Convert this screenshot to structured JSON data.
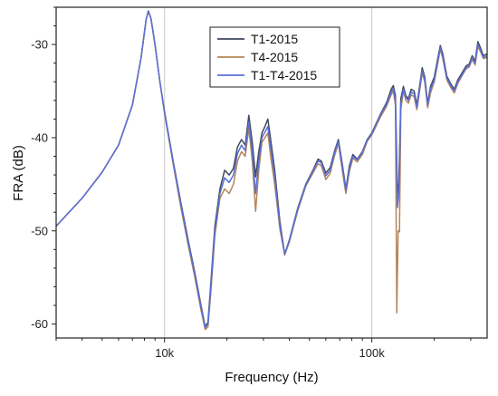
{
  "chart_data": {
    "type": "line",
    "xlabel": "Frequency (Hz)",
    "ylabel": "FRA (dB)",
    "xscale": "log",
    "xlim": [
      3000,
      360000
    ],
    "ylim": [
      -61.5,
      -26
    ],
    "x_ticks": [
      {
        "value": 10000,
        "label": "10k"
      },
      {
        "value": 100000,
        "label": "100k"
      }
    ],
    "y_ticks": [
      {
        "value": -30,
        "label": "-30"
      },
      {
        "value": -40,
        "label": "-40"
      },
      {
        "value": -50,
        "label": "-50"
      },
      {
        "value": -60,
        "label": "-60"
      }
    ],
    "vertical_gridlines": [
      10000,
      100000
    ],
    "legend_position": "top-center",
    "series": [
      {
        "name": "T1-2015",
        "color": "#3c4a5e",
        "points": [
          [
            3000,
            -49.5
          ],
          [
            4000,
            -46.5
          ],
          [
            5000,
            -43.7
          ],
          [
            6000,
            -40.8
          ],
          [
            7000,
            -36.5
          ],
          [
            7700,
            -31.5
          ],
          [
            8150,
            -27.3
          ],
          [
            8350,
            -26.4
          ],
          [
            8600,
            -27.2
          ],
          [
            9000,
            -30.0
          ],
          [
            9500,
            -34.0
          ],
          [
            10000,
            -37.2
          ],
          [
            11000,
            -42.5
          ],
          [
            12000,
            -47.0
          ],
          [
            13000,
            -51.0
          ],
          [
            14000,
            -54.5
          ],
          [
            15000,
            -58.0
          ],
          [
            15700,
            -60.3
          ],
          [
            16200,
            -59.8
          ],
          [
            16800,
            -55.0
          ],
          [
            17500,
            -49.5
          ],
          [
            18500,
            -45.5
          ],
          [
            19500,
            -43.5
          ],
          [
            20500,
            -44.0
          ],
          [
            21500,
            -43.3
          ],
          [
            22500,
            -41.0
          ],
          [
            23500,
            -40.2
          ],
          [
            24500,
            -40.8
          ],
          [
            25500,
            -37.6
          ],
          [
            26500,
            -40.5
          ],
          [
            27500,
            -44.2
          ],
          [
            28500,
            -41.5
          ],
          [
            29500,
            -39.5
          ],
          [
            30500,
            -38.8
          ],
          [
            31500,
            -38.0
          ],
          [
            32500,
            -40.2
          ],
          [
            34000,
            -43.5
          ],
          [
            36000,
            -49.0
          ],
          [
            38000,
            -52.5
          ],
          [
            40000,
            -51.0
          ],
          [
            44000,
            -47.5
          ],
          [
            48000,
            -45.0
          ],
          [
            52000,
            -43.5
          ],
          [
            55000,
            -42.3
          ],
          [
            57000,
            -42.5
          ],
          [
            60000,
            -43.8
          ],
          [
            63000,
            -43.2
          ],
          [
            66000,
            -41.5
          ],
          [
            69000,
            -40.2
          ],
          [
            72000,
            -42.8
          ],
          [
            75000,
            -45.5
          ],
          [
            78000,
            -43.0
          ],
          [
            81000,
            -41.8
          ],
          [
            85000,
            -42.3
          ],
          [
            90000,
            -41.5
          ],
          [
            95000,
            -40.2
          ],
          [
            100000,
            -39.5
          ],
          [
            110000,
            -37.5
          ],
          [
            118000,
            -36.2
          ],
          [
            124000,
            -34.8
          ],
          [
            127000,
            -34.4
          ],
          [
            130000,
            -35.5
          ],
          [
            133000,
            -46.0
          ],
          [
            135000,
            -44.8
          ],
          [
            138000,
            -35.8
          ],
          [
            142000,
            -34.5
          ],
          [
            146000,
            -35.5
          ],
          [
            150000,
            -35.8
          ],
          [
            155000,
            -34.8
          ],
          [
            160000,
            -35.0
          ],
          [
            165000,
            -36.5
          ],
          [
            170000,
            -34.5
          ],
          [
            175000,
            -32.5
          ],
          [
            180000,
            -33.5
          ],
          [
            186000,
            -36.3
          ],
          [
            192000,
            -34.5
          ],
          [
            200000,
            -33.5
          ],
          [
            208000,
            -31.5
          ],
          [
            214000,
            -30.1
          ],
          [
            220000,
            -31.0
          ],
          [
            230000,
            -33.4
          ],
          [
            240000,
            -34.2
          ],
          [
            250000,
            -34.8
          ],
          [
            260000,
            -33.8
          ],
          [
            270000,
            -33.2
          ],
          [
            285000,
            -32.3
          ],
          [
            295000,
            -32.1
          ],
          [
            305000,
            -31.2
          ],
          [
            315000,
            -31.8
          ],
          [
            325000,
            -29.7
          ],
          [
            335000,
            -30.4
          ],
          [
            345000,
            -31.2
          ],
          [
            360000,
            -31.0
          ]
        ]
      },
      {
        "name": "T4-2015",
        "color": "#b5865a",
        "points": [
          [
            3000,
            -49.5
          ],
          [
            4000,
            -46.5
          ],
          [
            5000,
            -43.7
          ],
          [
            6000,
            -40.8
          ],
          [
            7000,
            -36.5
          ],
          [
            7700,
            -31.5
          ],
          [
            8150,
            -27.3
          ],
          [
            8350,
            -26.4
          ],
          [
            8600,
            -27.2
          ],
          [
            9000,
            -30.0
          ],
          [
            9500,
            -34.0
          ],
          [
            10000,
            -37.4
          ],
          [
            11000,
            -42.8
          ],
          [
            12000,
            -47.5
          ],
          [
            13000,
            -51.5
          ],
          [
            14000,
            -55.0
          ],
          [
            15000,
            -58.5
          ],
          [
            15700,
            -60.6
          ],
          [
            16200,
            -60.3
          ],
          [
            16800,
            -56.0
          ],
          [
            17500,
            -50.5
          ],
          [
            18500,
            -46.5
          ],
          [
            19500,
            -45.5
          ],
          [
            20500,
            -46.0
          ],
          [
            21500,
            -45.0
          ],
          [
            22500,
            -42.5
          ],
          [
            23500,
            -41.5
          ],
          [
            24500,
            -42.0
          ],
          [
            25500,
            -39.0
          ],
          [
            26500,
            -42.5
          ],
          [
            27500,
            -47.9
          ],
          [
            28500,
            -43.5
          ],
          [
            29500,
            -40.5
          ],
          [
            30500,
            -40.0
          ],
          [
            31500,
            -39.5
          ],
          [
            32500,
            -42.0
          ],
          [
            34000,
            -45.0
          ],
          [
            36000,
            -49.8
          ],
          [
            38000,
            -52.6
          ],
          [
            40000,
            -51.2
          ],
          [
            44000,
            -47.8
          ],
          [
            48000,
            -45.2
          ],
          [
            52000,
            -43.8
          ],
          [
            55000,
            -42.8
          ],
          [
            57000,
            -43.0
          ],
          [
            60000,
            -44.5
          ],
          [
            63000,
            -43.8
          ],
          [
            66000,
            -42.0
          ],
          [
            69000,
            -40.6
          ],
          [
            72000,
            -43.5
          ],
          [
            75000,
            -46.0
          ],
          [
            78000,
            -43.6
          ],
          [
            81000,
            -42.2
          ],
          [
            85000,
            -42.6
          ],
          [
            90000,
            -41.8
          ],
          [
            95000,
            -40.4
          ],
          [
            100000,
            -39.7
          ],
          [
            110000,
            -37.8
          ],
          [
            118000,
            -36.6
          ],
          [
            124000,
            -35.4
          ],
          [
            127000,
            -35.0
          ],
          [
            130000,
            -36.5
          ],
          [
            132000,
            -58.8
          ],
          [
            134000,
            -50.0
          ],
          [
            136000,
            -50.1
          ],
          [
            138000,
            -37.0
          ],
          [
            142000,
            -35.0
          ],
          [
            146000,
            -36.0
          ],
          [
            150000,
            -36.3
          ],
          [
            155000,
            -35.4
          ],
          [
            160000,
            -35.6
          ],
          [
            165000,
            -37.0
          ],
          [
            170000,
            -35.0
          ],
          [
            175000,
            -33.0
          ],
          [
            180000,
            -34.0
          ],
          [
            186000,
            -36.8
          ],
          [
            192000,
            -35.2
          ],
          [
            200000,
            -34.0
          ],
          [
            208000,
            -32.0
          ],
          [
            214000,
            -30.5
          ],
          [
            220000,
            -31.5
          ],
          [
            230000,
            -33.8
          ],
          [
            240000,
            -34.6
          ],
          [
            250000,
            -35.2
          ],
          [
            260000,
            -34.2
          ],
          [
            270000,
            -33.5
          ],
          [
            285000,
            -32.6
          ],
          [
            295000,
            -32.4
          ],
          [
            305000,
            -31.6
          ],
          [
            315000,
            -32.2
          ],
          [
            325000,
            -30.2
          ],
          [
            335000,
            -30.8
          ],
          [
            345000,
            -31.5
          ],
          [
            360000,
            -31.4
          ]
        ]
      },
      {
        "name": "T1-T4-2015",
        "color": "#5b6fd6",
        "points": [
          [
            3000,
            -49.5
          ],
          [
            4000,
            -46.5
          ],
          [
            5000,
            -43.7
          ],
          [
            6000,
            -40.8
          ],
          [
            7000,
            -36.5
          ],
          [
            7700,
            -31.5
          ],
          [
            8150,
            -27.3
          ],
          [
            8350,
            -26.4
          ],
          [
            8600,
            -27.2
          ],
          [
            9000,
            -30.0
          ],
          [
            9500,
            -34.0
          ],
          [
            10000,
            -37.3
          ],
          [
            11000,
            -42.6
          ],
          [
            12000,
            -47.2
          ],
          [
            13000,
            -51.2
          ],
          [
            14000,
            -54.7
          ],
          [
            15000,
            -58.2
          ],
          [
            15700,
            -60.4
          ],
          [
            16200,
            -60.0
          ],
          [
            16800,
            -55.5
          ],
          [
            17500,
            -50.0
          ],
          [
            18500,
            -46.0
          ],
          [
            19500,
            -44.3
          ],
          [
            20500,
            -44.8
          ],
          [
            21500,
            -44.0
          ],
          [
            22500,
            -41.7
          ],
          [
            23500,
            -40.8
          ],
          [
            24500,
            -41.4
          ],
          [
            25500,
            -38.3
          ],
          [
            26500,
            -41.5
          ],
          [
            27500,
            -46.0
          ],
          [
            28500,
            -42.5
          ],
          [
            29500,
            -40.0
          ],
          [
            30500,
            -39.4
          ],
          [
            31500,
            -38.8
          ],
          [
            32500,
            -41.0
          ],
          [
            34000,
            -44.2
          ],
          [
            36000,
            -49.4
          ],
          [
            38000,
            -52.5
          ],
          [
            40000,
            -51.1
          ],
          [
            44000,
            -47.6
          ],
          [
            48000,
            -45.1
          ],
          [
            52000,
            -43.6
          ],
          [
            55000,
            -42.5
          ],
          [
            57000,
            -42.7
          ],
          [
            60000,
            -44.1
          ],
          [
            63000,
            -43.5
          ],
          [
            66000,
            -41.7
          ],
          [
            69000,
            -40.4
          ],
          [
            72000,
            -43.1
          ],
          [
            75000,
            -45.7
          ],
          [
            78000,
            -43.3
          ],
          [
            81000,
            -42.0
          ],
          [
            85000,
            -42.4
          ],
          [
            90000,
            -41.6
          ],
          [
            95000,
            -40.3
          ],
          [
            100000,
            -39.6
          ],
          [
            110000,
            -37.6
          ],
          [
            118000,
            -36.4
          ],
          [
            124000,
            -35.1
          ],
          [
            127000,
            -34.7
          ],
          [
            130000,
            -36.0
          ],
          [
            133000,
            -47.5
          ],
          [
            135000,
            -46.0
          ],
          [
            138000,
            -36.4
          ],
          [
            142000,
            -34.8
          ],
          [
            146000,
            -35.7
          ],
          [
            150000,
            -36.0
          ],
          [
            155000,
            -35.1
          ],
          [
            160000,
            -35.3
          ],
          [
            165000,
            -36.8
          ],
          [
            170000,
            -34.8
          ],
          [
            175000,
            -32.8
          ],
          [
            180000,
            -33.8
          ],
          [
            186000,
            -36.5
          ],
          [
            192000,
            -34.8
          ],
          [
            200000,
            -33.8
          ],
          [
            208000,
            -31.8
          ],
          [
            214000,
            -30.3
          ],
          [
            220000,
            -31.3
          ],
          [
            230000,
            -33.6
          ],
          [
            240000,
            -34.4
          ],
          [
            250000,
            -35.0
          ],
          [
            260000,
            -34.0
          ],
          [
            270000,
            -33.4
          ],
          [
            285000,
            -32.5
          ],
          [
            295000,
            -32.3
          ],
          [
            305000,
            -31.4
          ],
          [
            315000,
            -32.0
          ],
          [
            325000,
            -30.0
          ],
          [
            335000,
            -30.6
          ],
          [
            345000,
            -31.4
          ],
          [
            360000,
            -31.2
          ]
        ]
      }
    ]
  }
}
